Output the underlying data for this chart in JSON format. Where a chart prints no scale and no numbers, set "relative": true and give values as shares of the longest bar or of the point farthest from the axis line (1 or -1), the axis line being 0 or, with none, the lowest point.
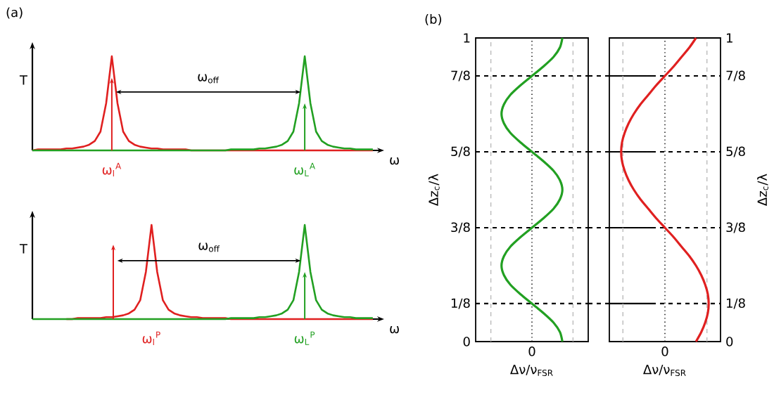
{
  "chart_data": [
    {
      "type": "line",
      "title": "(a)",
      "relative": true,
      "tick_labels": false,
      "ylabel": "T",
      "xlabel": "ω",
      "categories": [
        null,
        null,
        null,
        null,
        null,
        null,
        null,
        null,
        null,
        null,
        null,
        null,
        null,
        null,
        null,
        null,
        null,
        null,
        null,
        null,
        null,
        null,
        null,
        null,
        null,
        null,
        null,
        null,
        null,
        null,
        null,
        null,
        null,
        null,
        null,
        null,
        null,
        null,
        null,
        null,
        null,
        null,
        null,
        null,
        null,
        null,
        null,
        null,
        null,
        null,
        null,
        null,
        null,
        null,
        null,
        null,
        null,
        null,
        null,
        null,
        null
      ],
      "annotations": [
        "ω$_{off}$",
        "ω$_{l}$$^{A}$",
        "ω$_{L}$$^{A}$"
      ],
      "series": [
        {
          "type": "line",
          "color": "#e02020",
          "values": [
            0,
            0.01,
            0.01,
            0.01,
            0.01,
            0.01,
            0.02,
            0.02,
            0.03,
            0.04,
            0.06,
            0.1,
            0.2,
            0.5,
            1,
            0.5,
            0.2,
            0.1,
            0.06,
            0.04,
            0.03,
            0.02,
            0.02,
            0.01,
            0.01,
            0.01,
            0.01,
            0.01,
            0,
            0,
            0,
            0,
            0,
            0,
            0,
            0,
            0,
            0,
            0,
            0,
            0,
            0,
            0,
            0,
            0,
            0,
            0,
            0,
            0,
            0,
            0,
            0,
            0,
            0,
            0,
            0,
            0,
            0,
            0,
            0,
            0
          ]
        },
        {
          "type": "line",
          "color": "#22a022",
          "values": [
            0,
            0,
            0,
            0,
            0,
            0,
            0,
            0,
            0,
            0,
            0,
            0,
            0,
            0,
            0,
            0,
            0,
            0,
            0,
            0,
            0,
            0,
            0,
            0,
            0,
            0,
            0,
            0,
            0,
            0,
            0,
            0,
            0,
            0,
            0,
            0.01,
            0.01,
            0.01,
            0.01,
            0.01,
            0.02,
            0.02,
            0.03,
            0.04,
            0.06,
            0.1,
            0.2,
            0.5,
            1,
            0.5,
            0.2,
            0.1,
            0.06,
            0.04,
            0.03,
            0.02,
            0.02,
            0.01,
            0.01,
            0.01,
            0.01
          ]
        }
      ]
    },
    {
      "type": "line",
      "relative": true,
      "tick_labels": false,
      "ylabel": "T",
      "xlabel": "ω",
      "categories": [
        null,
        null,
        null,
        null,
        null,
        null,
        null,
        null,
        null,
        null,
        null,
        null,
        null,
        null,
        null,
        null,
        null,
        null,
        null,
        null,
        null,
        null,
        null,
        null,
        null,
        null,
        null,
        null,
        null,
        null,
        null,
        null,
        null,
        null,
        null,
        null,
        null,
        null,
        null,
        null,
        null,
        null,
        null,
        null,
        null,
        null,
        null,
        null,
        null,
        null,
        null,
        null,
        null,
        null,
        null,
        null,
        null,
        null,
        null,
        null,
        null
      ],
      "annotations": [
        "ω$_{off}$",
        "ω$_{l}$$^{P}$",
        "ω$_{L}$$^{P}$"
      ],
      "series": [
        {
          "type": "line",
          "color": "#e02020",
          "values": [
            null,
            null,
            null,
            null,
            null,
            null,
            0,
            0,
            0.01,
            0.01,
            0.01,
            0.01,
            0.01,
            0.02,
            0.02,
            0.03,
            0.04,
            0.06,
            0.1,
            0.2,
            0.5,
            1,
            0.5,
            0.2,
            0.1,
            0.06,
            0.04,
            0.03,
            0.02,
            0.02,
            0.01,
            0.01,
            0.01,
            0.01,
            0.01,
            0,
            0,
            0,
            0,
            0,
            0,
            0,
            0,
            0,
            0,
            0,
            0,
            0,
            0,
            0,
            0,
            0,
            0,
            0,
            0,
            0,
            0,
            0,
            0,
            0,
            0
          ]
        },
        {
          "type": "line",
          "color": "#22a022",
          "values": [
            0,
            0,
            0,
            0,
            0,
            0,
            0,
            0,
            0,
            0,
            0,
            0,
            0,
            0,
            0,
            0,
            0,
            0,
            0,
            0,
            0,
            0,
            0,
            0,
            0,
            0,
            0,
            0,
            0,
            0,
            0,
            0,
            0,
            0,
            0,
            0.01,
            0.01,
            0.01,
            0.01,
            0.01,
            0.02,
            0.02,
            0.03,
            0.04,
            0.06,
            0.1,
            0.2,
            0.5,
            1,
            0.5,
            0.2,
            0.1,
            0.06,
            0.04,
            0.03,
            0.02,
            0.02,
            0.01,
            0.01,
            0.01,
            0.01
          ]
        }
      ]
    },
    {
      "type": "line",
      "title": "(b)",
      "orientation": "horizontal",
      "relative": true,
      "tick_labels": "y",
      "xlabel": "Δν/ν$_{FSR}$",
      "ylabel": "Δz$_{c}$/λ",
      "ylim": [
        0,
        1
      ],
      "yticks": [
        0,
        {
          "value": 0.125,
          "label": "1/8"
        },
        {
          "value": 0.375,
          "label": "3/8"
        },
        {
          "value": 0.625,
          "label": "5/8"
        },
        {
          "value": 0.875,
          "label": "7/8"
        },
        1
      ],
      "x": [
        0,
        0.0313,
        0.0625,
        0.0938,
        0.125,
        0.1563,
        0.1875,
        0.2188,
        0.25,
        0.2813,
        0.3125,
        0.3438,
        0.375,
        0.4063,
        0.4375,
        0.4688,
        0.5,
        0.5313,
        0.5625,
        0.5938,
        0.625,
        0.6563,
        0.6875,
        0.7188,
        0.75,
        0.7813,
        0.8125,
        0.8438,
        0.875,
        0.9063,
        0.9375,
        0.9688,
        1
      ],
      "ref_lines": [
        {
          "axis": "x",
          "value": 0,
          "label": "0",
          "color": "#000000",
          "line_style": "dotted"
        },
        {
          "axis": "x",
          "value": -1.35,
          "color": "#bbbbbb",
          "line_style": "dashed"
        },
        {
          "axis": "x",
          "value": 1.35,
          "color": "#bbbbbb",
          "line_style": "dashed"
        },
        {
          "axis": "y",
          "value": 0.125,
          "color": "#000000",
          "line_style": "dashed"
        },
        {
          "axis": "y",
          "value": 0.375,
          "color": "#000000",
          "line_style": "dashed"
        },
        {
          "axis": "y",
          "value": 0.625,
          "color": "#000000",
          "line_style": "dashed"
        },
        {
          "axis": "y",
          "value": 0.875,
          "color": "#000000",
          "line_style": "dashed"
        }
      ],
      "series": [
        {
          "color": "#22a022",
          "values": [
            1,
            0.92,
            0.71,
            0.38,
            0,
            -0.38,
            -0.71,
            -0.92,
            -1,
            -0.92,
            -0.71,
            -0.38,
            0,
            0.38,
            0.71,
            0.92,
            1,
            0.92,
            0.71,
            0.38,
            0,
            -0.38,
            -0.71,
            -0.92,
            -1,
            -0.92,
            -0.71,
            -0.38,
            0,
            0.38,
            0.71,
            0.92,
            1
          ]
        }
      ]
    },
    {
      "type": "line",
      "orientation": "horizontal",
      "relative": true,
      "tick_labels": "y",
      "xlabel": "Δν/ν$_{FSR}$",
      "ylabel": "Δz$_{c}$/λ",
      "ylim": [
        0,
        1
      ],
      "yticks": [
        0,
        {
          "value": 0.125,
          "label": "1/8"
        },
        {
          "value": 0.375,
          "label": "3/8"
        },
        {
          "value": 0.625,
          "label": "5/8"
        },
        {
          "value": 0.875,
          "label": "7/8"
        },
        1
      ],
      "x": [
        0,
        0.0313,
        0.0625,
        0.0938,
        0.125,
        0.1563,
        0.1875,
        0.2188,
        0.25,
        0.2813,
        0.3125,
        0.3438,
        0.375,
        0.4063,
        0.4375,
        0.4688,
        0.5,
        0.5313,
        0.5625,
        0.5938,
        0.625,
        0.6563,
        0.6875,
        0.7188,
        0.75,
        0.7813,
        0.8125,
        0.8438,
        0.875,
        0.9063,
        0.9375,
        0.9688,
        1
      ],
      "ref_lines": [
        {
          "axis": "x",
          "value": 0,
          "label": "0",
          "color": "#000000",
          "line_style": "dotted"
        },
        {
          "axis": "x",
          "value": -0.96,
          "color": "#bbbbbb",
          "line_style": "dashed"
        },
        {
          "axis": "x",
          "value": 0.96,
          "color": "#bbbbbb",
          "line_style": "dashed"
        },
        {
          "axis": "y",
          "value": 0.125,
          "color": "#000000",
          "line_style": "dashed"
        },
        {
          "axis": "y",
          "value": 0.375,
          "color": "#000000",
          "line_style": "dashed"
        },
        {
          "axis": "y",
          "value": 0.625,
          "color": "#000000",
          "line_style": "dashed"
        },
        {
          "axis": "y",
          "value": 0.875,
          "color": "#000000",
          "line_style": "dashed"
        }
      ],
      "series": [
        {
          "color": "#e02020",
          "values": [
            0.71,
            0.83,
            0.92,
            0.98,
            1,
            0.98,
            0.92,
            0.83,
            0.71,
            0.56,
            0.38,
            0.2,
            0,
            -0.2,
            -0.38,
            -0.56,
            -0.71,
            -0.83,
            -0.92,
            -0.98,
            -1,
            -0.98,
            -0.92,
            -0.83,
            -0.71,
            -0.56,
            -0.38,
            -0.2,
            0,
            0.2,
            0.38,
            0.56,
            0.71
          ]
        }
      ]
    }
  ]
}
